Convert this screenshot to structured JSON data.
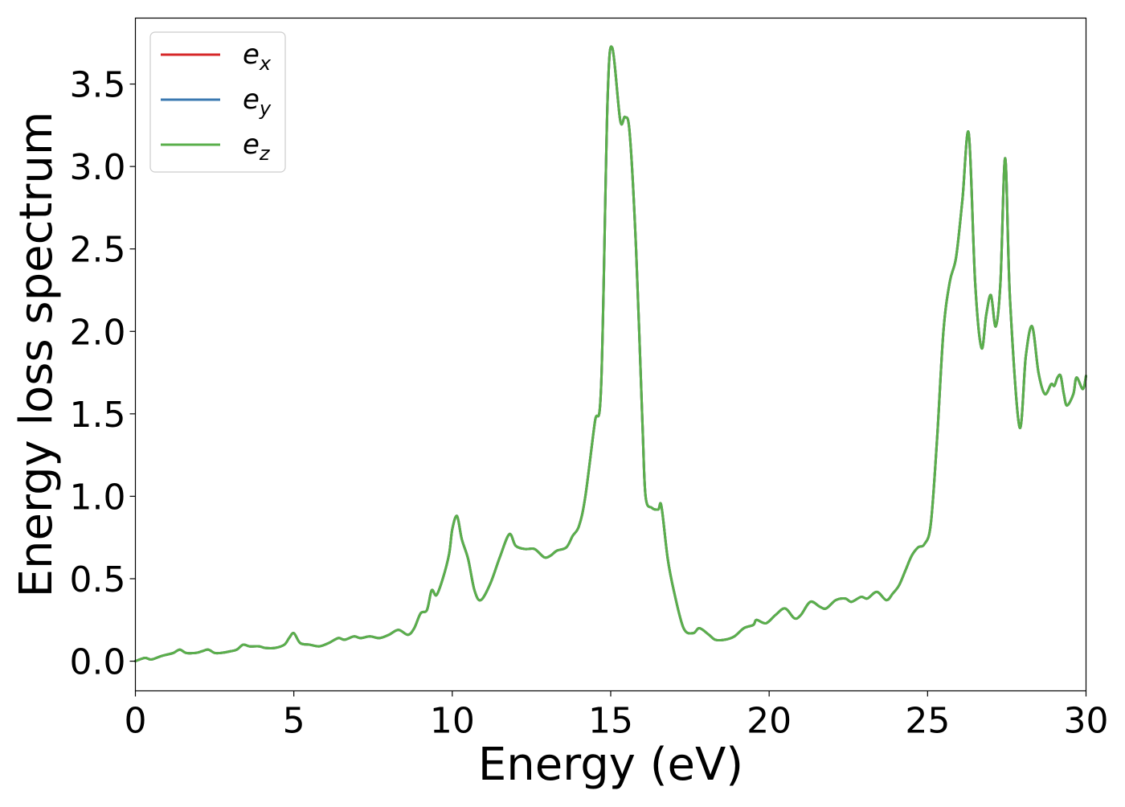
{
  "chart_data": {
    "type": "line",
    "title": "",
    "xlabel": "Energy (eV)",
    "ylabel": "Energy loss spectrum",
    "xlim": [
      0,
      30
    ],
    "ylim": [
      -0.18,
      3.9
    ],
    "xticks": [
      0,
      5,
      10,
      15,
      20,
      25,
      30
    ],
    "xtick_labels": [
      "0",
      "5",
      "10",
      "15",
      "20",
      "25",
      "30"
    ],
    "yticks": [
      0.0,
      0.5,
      1.0,
      1.5,
      2.0,
      2.5,
      3.0,
      3.5
    ],
    "ytick_labels": [
      "0.0",
      "0.5",
      "1.0",
      "1.5",
      "2.0",
      "2.5",
      "3.0",
      "3.5"
    ],
    "grid": false,
    "legend_position": "top-left",
    "colors": {
      "e_x": "#d62728",
      "e_y": "#3a78b0",
      "e_z": "#5aaf4b"
    },
    "series": [
      {
        "name": "e_x",
        "label_base": "e",
        "label_sub": "x",
        "color": "#d62728",
        "x": [],
        "y": []
      },
      {
        "name": "e_y",
        "label_base": "e",
        "label_sub": "y",
        "color": "#3a78b0",
        "x": [],
        "y": []
      },
      {
        "name": "e_z",
        "label_base": "e",
        "label_sub": "z",
        "color": "#5aaf4b",
        "x": [],
        "y": []
      }
    ],
    "x": [
      0.0,
      0.3,
      0.5,
      0.8,
      1.0,
      1.2,
      1.4,
      1.6,
      1.9,
      2.1,
      2.3,
      2.5,
      2.7,
      3.0,
      3.2,
      3.4,
      3.6,
      3.9,
      4.1,
      4.4,
      4.7,
      4.85,
      5.0,
      5.2,
      5.5,
      5.8,
      6.1,
      6.4,
      6.6,
      6.9,
      7.1,
      7.4,
      7.7,
      8.0,
      8.3,
      8.6,
      8.8,
      9.0,
      9.2,
      9.35,
      9.5,
      9.7,
      9.9,
      10.0,
      10.15,
      10.3,
      10.5,
      10.7,
      10.9,
      11.2,
      11.5,
      11.8,
      12.0,
      12.3,
      12.6,
      12.9,
      13.1,
      13.3,
      13.6,
      13.8,
      14.0,
      14.2,
      14.5,
      14.7,
      14.9,
      15.05,
      15.3,
      15.45,
      15.6,
      15.8,
      16.0,
      16.1,
      16.3,
      16.5,
      16.6,
      16.8,
      17.0,
      17.3,
      17.6,
      17.8,
      18.1,
      18.3,
      18.6,
      18.9,
      19.2,
      19.5,
      19.6,
      19.9,
      20.2,
      20.5,
      20.8,
      21.0,
      21.3,
      21.6,
      21.8,
      22.1,
      22.4,
      22.6,
      22.9,
      23.1,
      23.4,
      23.7,
      23.9,
      24.1,
      24.3,
      24.5,
      24.7,
      24.9,
      25.1,
      25.3,
      25.5,
      25.7,
      25.9,
      26.1,
      26.3,
      26.5,
      26.7,
      26.85,
      27.0,
      27.15,
      27.3,
      27.45,
      27.6,
      27.9,
      28.1,
      28.3,
      28.5,
      28.7,
      28.9,
      29.0,
      29.1,
      29.2,
      29.3,
      29.4,
      29.6,
      29.7,
      29.9,
      30.0
    ],
    "y": [
      0.0,
      0.02,
      0.01,
      0.03,
      0.04,
      0.05,
      0.07,
      0.05,
      0.05,
      0.06,
      0.07,
      0.05,
      0.05,
      0.06,
      0.07,
      0.1,
      0.09,
      0.09,
      0.08,
      0.08,
      0.1,
      0.14,
      0.17,
      0.11,
      0.1,
      0.09,
      0.11,
      0.14,
      0.13,
      0.15,
      0.14,
      0.15,
      0.14,
      0.16,
      0.19,
      0.16,
      0.2,
      0.29,
      0.31,
      0.43,
      0.4,
      0.5,
      0.65,
      0.8,
      0.88,
      0.74,
      0.62,
      0.43,
      0.37,
      0.47,
      0.63,
      0.77,
      0.7,
      0.68,
      0.68,
      0.63,
      0.64,
      0.67,
      0.69,
      0.76,
      0.82,
      1.0,
      1.45,
      1.68,
      3.4,
      3.72,
      3.28,
      3.3,
      3.2,
      2.5,
      1.45,
      1.0,
      0.93,
      0.92,
      0.94,
      0.62,
      0.42,
      0.2,
      0.17,
      0.2,
      0.16,
      0.13,
      0.13,
      0.15,
      0.2,
      0.22,
      0.25,
      0.23,
      0.28,
      0.32,
      0.26,
      0.28,
      0.36,
      0.33,
      0.32,
      0.37,
      0.38,
      0.36,
      0.39,
      0.38,
      0.42,
      0.37,
      0.41,
      0.46,
      0.55,
      0.64,
      0.69,
      0.71,
      0.83,
      1.35,
      2.0,
      2.3,
      2.45,
      2.8,
      3.2,
      2.3,
      1.9,
      2.1,
      2.22,
      2.03,
      2.3,
      3.05,
      2.2,
      1.42,
      1.85,
      2.03,
      1.75,
      1.62,
      1.68,
      1.67,
      1.72,
      1.73,
      1.62,
      1.55,
      1.62,
      1.72,
      1.65,
      1.73
    ]
  }
}
